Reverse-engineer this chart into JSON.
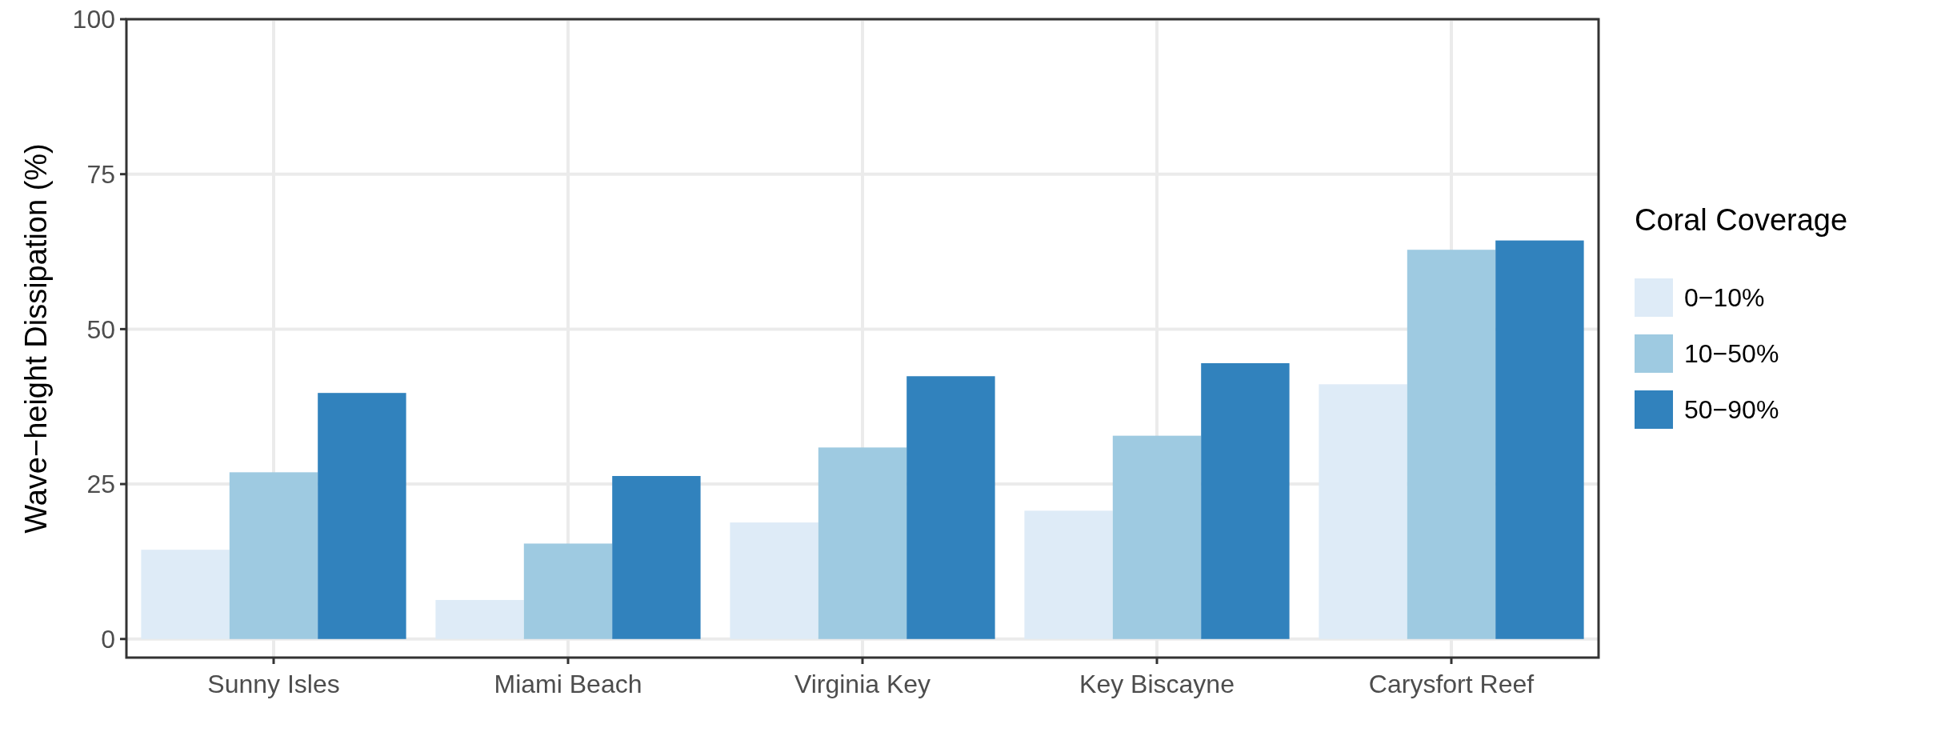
{
  "chart_data": {
    "type": "bar",
    "ylabel": "Wave−height Dissipation (%)",
    "legend_title": "Coral Coverage",
    "categories": [
      "Sunny Isles",
      "Miami Beach",
      "Virginia Key",
      "Key Biscayne",
      "Carysfort Reef"
    ],
    "series": [
      {
        "name": "0−10%",
        "color": "#deebf7",
        "values": [
          14.4,
          6.3,
          18.8,
          20.7,
          41.1
        ]
      },
      {
        "name": "10−50%",
        "color": "#9ecae1",
        "values": [
          26.9,
          15.4,
          30.9,
          32.8,
          62.8
        ]
      },
      {
        "name": "50−90%",
        "color": "#3182bd",
        "values": [
          39.7,
          26.3,
          42.4,
          44.5,
          64.3
        ]
      }
    ],
    "ylim": [
      -3,
      100
    ],
    "yticks": [
      0,
      25,
      50,
      75,
      100
    ],
    "grid": true,
    "legend": "right"
  }
}
